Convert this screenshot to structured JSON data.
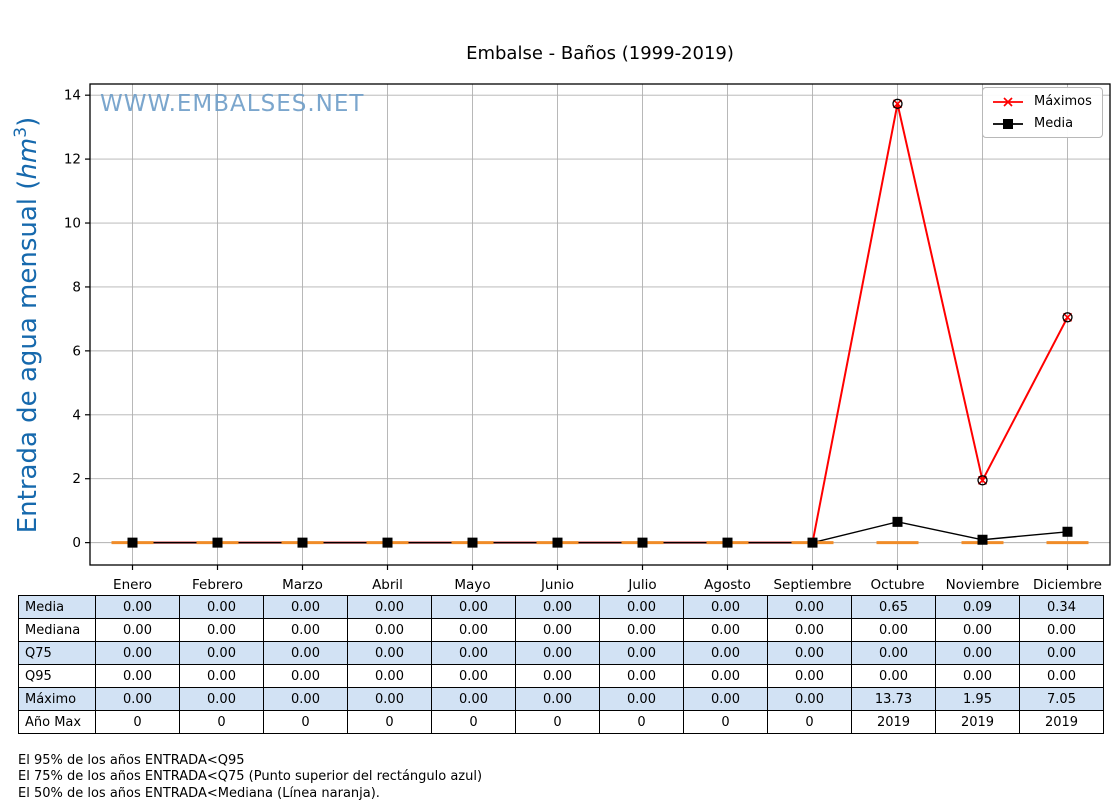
{
  "watermark": "WWW.EMBALSES.NET",
  "chart_data": {
    "type": "line",
    "title": "Embalse - Baños (1999-2019)",
    "xlabel": "",
    "ylabel": "Entrada de agua mensual (hm³)",
    "ylabel_parts": {
      "prefix": "Entrada de agua mensual (",
      "unit": "hm",
      "sup": "3",
      "suffix": ")"
    },
    "categories": [
      "Enero",
      "Febrero",
      "Marzo",
      "Abril",
      "Mayo",
      "Junio",
      "Julio",
      "Agosto",
      "Septiembre",
      "Octubre",
      "Noviembre",
      "Diciembre"
    ],
    "series": [
      {
        "name": "Máximos",
        "color": "#ff0000",
        "marker": "x",
        "values": [
          0,
          0,
          0,
          0,
          0,
          0,
          0,
          0,
          0,
          13.73,
          1.95,
          7.05
        ]
      },
      {
        "name": "Media",
        "color": "#000000",
        "marker": "square",
        "values": [
          0,
          0,
          0,
          0,
          0,
          0,
          0,
          0,
          0,
          0.65,
          0.09,
          0.34
        ]
      }
    ],
    "median_line": {
      "name": "Mediana",
      "color": "#f08c28",
      "values": [
        0,
        0,
        0,
        0,
        0,
        0,
        0,
        0,
        0,
        0,
        0,
        0
      ]
    },
    "yticks": [
      0,
      2,
      4,
      6,
      8,
      10,
      12,
      14
    ],
    "ylim": [
      -0.7,
      14.35
    ],
    "grid": true,
    "legend_position": "upper right",
    "grid_color": "#b0b0b0",
    "watermark_color": "#6d9dc8",
    "ylabel_color": "#1669ad"
  },
  "table": {
    "columns": [
      "Enero",
      "Febrero",
      "Marzo",
      "Abril",
      "Mayo",
      "Junio",
      "Julio",
      "Agosto",
      "Septiembre",
      "Octubre",
      "Noviembre",
      "Diciembre"
    ],
    "alt_row_color": "#d2e2f4",
    "rows": [
      {
        "label": "Media",
        "values": [
          "0.00",
          "0.00",
          "0.00",
          "0.00",
          "0.00",
          "0.00",
          "0.00",
          "0.00",
          "0.00",
          "0.65",
          "0.09",
          "0.34"
        ]
      },
      {
        "label": "Mediana",
        "values": [
          "0.00",
          "0.00",
          "0.00",
          "0.00",
          "0.00",
          "0.00",
          "0.00",
          "0.00",
          "0.00",
          "0.00",
          "0.00",
          "0.00"
        ]
      },
      {
        "label": "Q75",
        "values": [
          "0.00",
          "0.00",
          "0.00",
          "0.00",
          "0.00",
          "0.00",
          "0.00",
          "0.00",
          "0.00",
          "0.00",
          "0.00",
          "0.00"
        ]
      },
      {
        "label": "Q95",
        "values": [
          "0.00",
          "0.00",
          "0.00",
          "0.00",
          "0.00",
          "0.00",
          "0.00",
          "0.00",
          "0.00",
          "0.00",
          "0.00",
          "0.00"
        ]
      },
      {
        "label": "Máximo",
        "values": [
          "0.00",
          "0.00",
          "0.00",
          "0.00",
          "0.00",
          "0.00",
          "0.00",
          "0.00",
          "0.00",
          "13.73",
          "1.95",
          "7.05"
        ]
      },
      {
        "label": "Año Max",
        "values": [
          "0",
          "0",
          "0",
          "0",
          "0",
          "0",
          "0",
          "0",
          "0",
          "2019",
          "2019",
          "2019"
        ]
      }
    ]
  },
  "footnotes": [
    "El 95% de los años ENTRADA<Q95",
    "El 75% de los años ENTRADA<Q75 (Punto superior del rectángulo azul)",
    "El 50% de los años ENTRADA<Mediana (Línea naranja)."
  ]
}
